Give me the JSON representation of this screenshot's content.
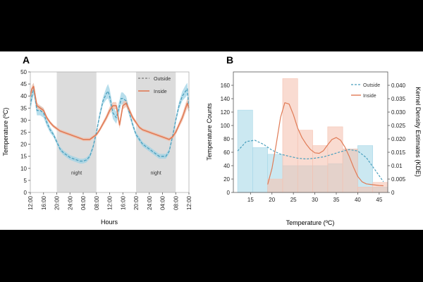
{
  "chart_data": [
    {
      "panel_label": "A",
      "type": "line",
      "title": "",
      "xlabel": "Hours",
      "ylabel": "Temperature (ºC)",
      "ylim": [
        0,
        50
      ],
      "yticks": [
        0,
        5,
        10,
        15,
        20,
        25,
        30,
        35,
        40,
        45,
        50
      ],
      "xlim": [
        0,
        48
      ],
      "xticks": [
        {
          "pos": 0,
          "label": "12:00"
        },
        {
          "pos": 4,
          "label": "16:00"
        },
        {
          "pos": 8,
          "label": "20:00"
        },
        {
          "pos": 12,
          "label": "24:00"
        },
        {
          "pos": 16,
          "label": "04:00"
        },
        {
          "pos": 20,
          "label": "08:00"
        },
        {
          "pos": 24,
          "label": "12:00"
        },
        {
          "pos": 28,
          "label": "16:00"
        },
        {
          "pos": 32,
          "label": "20:00"
        },
        {
          "pos": 36,
          "label": "24:00"
        },
        {
          "pos": 40,
          "label": "04:00"
        },
        {
          "pos": 44,
          "label": "08:00"
        },
        {
          "pos": 48,
          "label": "12:00"
        }
      ],
      "night_bands": [
        {
          "start": 8,
          "end": 20,
          "label": "night"
        },
        {
          "start": 32,
          "end": 44,
          "label": "night"
        }
      ],
      "legend": {
        "placement": "top-right",
        "entries": [
          "Outside",
          "Inside"
        ]
      },
      "series": [
        {
          "name": "Outside",
          "style": "dashed",
          "color": "#4a9fbd",
          "band_color": "#9fd3e6",
          "x": [
            0,
            0.5,
            1,
            1.5,
            2,
            3,
            4,
            5,
            6,
            7,
            8,
            9,
            10,
            11,
            12,
            13,
            14,
            15,
            16,
            17,
            18,
            19,
            20,
            21,
            22,
            23,
            23.5,
            24,
            25,
            26,
            27,
            27.5,
            28,
            29,
            30,
            31,
            32,
            33,
            34,
            35,
            36,
            37,
            38,
            39,
            40,
            41,
            42,
            43,
            44,
            45,
            46,
            47,
            47.5,
            48
          ],
          "values": [
            36,
            40,
            43,
            39,
            34,
            34,
            33,
            29,
            26,
            24,
            21,
            18,
            16.5,
            15.5,
            14.5,
            14,
            13.5,
            13,
            13,
            13.5,
            15,
            19,
            25,
            32,
            38,
            41,
            42,
            40,
            33,
            31,
            36,
            39,
            39,
            38,
            33,
            28,
            24,
            22,
            20,
            19,
            18,
            17,
            16,
            15,
            15,
            15,
            17,
            23,
            30,
            36,
            40,
            42,
            43,
            34
          ],
          "band_halfwidth": [
            2.5,
            2.5,
            2.5,
            2.5,
            2,
            2,
            2,
            1.5,
            1.2,
            1,
            1,
            1,
            1,
            1,
            1,
            1,
            1,
            1,
            1,
            1,
            1,
            1,
            1,
            1.2,
            1.5,
            2.5,
            3,
            3,
            2.5,
            2.5,
            2.5,
            2.5,
            2.5,
            2,
            1.5,
            1.2,
            1,
            1,
            1,
            1,
            1,
            1,
            1,
            1,
            1,
            1,
            1,
            1,
            1.2,
            1.5,
            2,
            2.5,
            2.5,
            2.5
          ]
        },
        {
          "name": "Inside",
          "style": "solid",
          "color": "#e07b56",
          "band_color": "#f2bfa9",
          "x": [
            0,
            0.5,
            1,
            1.5,
            2,
            3,
            4,
            5,
            6,
            7,
            8,
            9,
            10,
            11,
            12,
            13,
            14,
            15,
            16,
            17,
            18,
            19,
            20,
            21,
            22,
            23,
            24,
            25,
            26,
            27,
            28,
            29,
            30,
            31,
            32,
            33,
            34,
            35,
            36,
            37,
            38,
            39,
            40,
            41,
            42,
            43,
            44,
            45,
            46,
            47,
            47.5,
            48
          ],
          "values": [
            40,
            43,
            44,
            40,
            36,
            35,
            34,
            31,
            29,
            27.5,
            26.5,
            25.5,
            25,
            24.5,
            24,
            23.5,
            23,
            22.5,
            22,
            22,
            22,
            23,
            24,
            26,
            28.5,
            31,
            34,
            36,
            36,
            28,
            36,
            37,
            34,
            31,
            29,
            27,
            26,
            25.5,
            25,
            24.5,
            24,
            23.5,
            23,
            22.5,
            22,
            23,
            25,
            28,
            31,
            35,
            37,
            35
          ],
          "band_halfwidth": [
            1.5,
            1.5,
            1.5,
            1.5,
            1.2,
            1,
            1,
            0.8,
            0.7,
            0.7,
            0.7,
            0.7,
            0.7,
            0.7,
            0.7,
            0.7,
            0.7,
            0.7,
            0.7,
            0.7,
            0.7,
            0.7,
            0.7,
            0.8,
            1,
            1.2,
            1.5,
            1.5,
            1.5,
            1.5,
            1.5,
            1.5,
            1.2,
            1,
            0.8,
            0.7,
            0.7,
            0.7,
            0.7,
            0.7,
            0.7,
            0.7,
            0.7,
            0.7,
            0.7,
            0.8,
            1,
            1.2,
            1.5,
            2,
            2,
            2
          ]
        }
      ]
    },
    {
      "panel_label": "B",
      "type": "histogram+kde",
      "title": "",
      "xlabel": "Temperature (ºC)",
      "ylabel": "Temperature Counts",
      "y2label": "Kernel Density Estimates (KDE)",
      "xlim": [
        11,
        47
      ],
      "xticks": [
        15,
        20,
        25,
        30,
        35,
        40,
        45
      ],
      "ylim": [
        0,
        180
      ],
      "yticks": [
        0,
        20,
        40,
        60,
        80,
        100,
        120,
        140,
        160
      ],
      "y2lim": [
        0,
        0.045
      ],
      "y2ticks": [
        {
          "value": 0,
          "label": "0"
        },
        {
          "value": 0.005,
          "label": "0.005"
        },
        {
          "value": 0.01,
          "label": "0.01"
        },
        {
          "value": 0.015,
          "label": "0.015"
        },
        {
          "value": 0.02,
          "label": "0.020"
        },
        {
          "value": 0.025,
          "label": "0.025"
        },
        {
          "value": 0.03,
          "label": "0.030"
        },
        {
          "value": 0.035,
          "label": "0.035"
        },
        {
          "value": 0.04,
          "label": "0.040"
        }
      ],
      "legend": {
        "placement": "top-right",
        "entries": [
          "Outside",
          "Inside"
        ]
      },
      "bins": [
        {
          "start": 12,
          "end": 15.5
        },
        {
          "start": 15.5,
          "end": 19
        },
        {
          "start": 19,
          "end": 22.5
        },
        {
          "start": 22.5,
          "end": 26
        },
        {
          "start": 26,
          "end": 29.5
        },
        {
          "start": 29.5,
          "end": 33
        },
        {
          "start": 33,
          "end": 36.5
        },
        {
          "start": 36.5,
          "end": 40
        },
        {
          "start": 40,
          "end": 43.5
        },
        {
          "start": 43.5,
          "end": 47
        }
      ],
      "series": [
        {
          "name": "Outside",
          "style": "dashed",
          "color": "#4a9fbd",
          "bar_color": "#a8d8e8",
          "counts": [
            123,
            67,
            57,
            40,
            40,
            40,
            43,
            65,
            70,
            8
          ],
          "kde_x": [
            12,
            14,
            16,
            18,
            20,
            22,
            24,
            26,
            28,
            30,
            32,
            34,
            36,
            38,
            40,
            42,
            44,
            46
          ],
          "kde_y": [
            0.0155,
            0.019,
            0.0195,
            0.018,
            0.0158,
            0.0143,
            0.0135,
            0.0128,
            0.0125,
            0.0128,
            0.0133,
            0.0142,
            0.0152,
            0.016,
            0.0155,
            0.013,
            0.0085,
            0.004
          ]
        },
        {
          "name": "Inside",
          "style": "solid",
          "color": "#e07b56",
          "bar_color": "#f5c3b2",
          "counts": [
            0,
            0,
            20,
            170,
            93,
            70,
            98,
            65,
            8,
            15
          ],
          "kde_x": [
            19,
            20,
            21,
            22,
            23,
            24,
            25,
            26,
            27,
            28,
            29,
            30,
            31,
            32,
            33,
            34,
            35,
            36,
            37,
            38,
            39,
            40,
            41,
            42,
            43,
            44,
            45,
            46
          ],
          "kde_y": [
            0.003,
            0.009,
            0.018,
            0.028,
            0.0335,
            0.033,
            0.029,
            0.024,
            0.0205,
            0.018,
            0.016,
            0.0148,
            0.0146,
            0.0156,
            0.0178,
            0.0198,
            0.0205,
            0.0195,
            0.017,
            0.0135,
            0.0095,
            0.006,
            0.004,
            0.0032,
            0.003,
            0.0028,
            0.0026,
            0.0025
          ]
        }
      ]
    }
  ]
}
